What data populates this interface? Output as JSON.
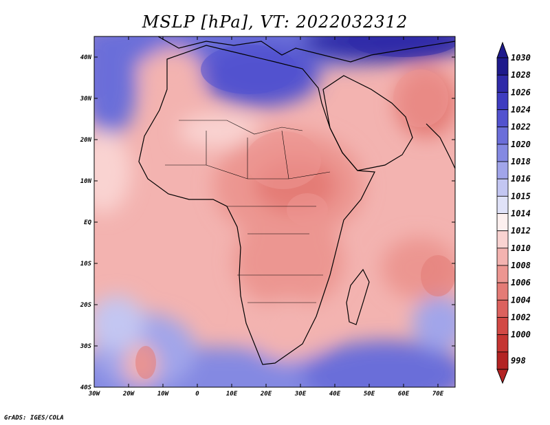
{
  "title": "MSLP [hPa], VT: 2022032312",
  "credit": "GrADS: IGES/COLA",
  "map": {
    "lon_range": [
      -30,
      75
    ],
    "lat_range": [
      -40,
      45
    ],
    "lon_ticks": [
      {
        "lon": -30,
        "label": "30W"
      },
      {
        "lon": -20,
        "label": "20W"
      },
      {
        "lon": -10,
        "label": "10W"
      },
      {
        "lon": 0,
        "label": "0"
      },
      {
        "lon": 10,
        "label": "10E"
      },
      {
        "lon": 20,
        "label": "20E"
      },
      {
        "lon": 30,
        "label": "30E"
      },
      {
        "lon": 40,
        "label": "40E"
      },
      {
        "lon": 50,
        "label": "50E"
      },
      {
        "lon": 60,
        "label": "60E"
      },
      {
        "lon": 70,
        "label": "70E"
      }
    ],
    "lat_ticks": [
      {
        "lat": 40,
        "label": "40N"
      },
      {
        "lat": 30,
        "label": "30N"
      },
      {
        "lat": 20,
        "label": "20N"
      },
      {
        "lat": 10,
        "label": "10N"
      },
      {
        "lat": 0,
        "label": "EQ"
      },
      {
        "lat": -10,
        "label": "10S"
      },
      {
        "lat": -20,
        "label": "20S"
      },
      {
        "lat": -30,
        "label": "30S"
      },
      {
        "lat": -40,
        "label": "40S"
      }
    ]
  },
  "colorbar": {
    "levels": [
      {
        "label": "1030",
        "color": "#1e1a8c"
      },
      {
        "label": "1028",
        "color": "#2f2aa8"
      },
      {
        "label": "1026",
        "color": "#3e3cc0"
      },
      {
        "label": "1024",
        "color": "#5252cf"
      },
      {
        "label": "1022",
        "color": "#6b6ed9"
      },
      {
        "label": "1020",
        "color": "#8489e2"
      },
      {
        "label": "1018",
        "color": "#a1a5ea"
      },
      {
        "label": "1016",
        "color": "#c3c6f2"
      },
      {
        "label": "1015",
        "color": "#e0e2f8"
      },
      {
        "label": "1014",
        "color": "#fdf0ef"
      },
      {
        "label": "1012",
        "color": "#f9d3d1"
      },
      {
        "label": "1010",
        "color": "#f3b3b0"
      },
      {
        "label": "1008",
        "color": "#ec9691"
      },
      {
        "label": "1006",
        "color": "#e47b76"
      },
      {
        "label": "1004",
        "color": "#dc625e"
      },
      {
        "label": "1002",
        "color": "#d24945"
      },
      {
        "label": "1000",
        "color": "#c53532"
      },
      {
        "label": "998",
        "color": "#b32323"
      }
    ]
  },
  "pressure_regions": [
    {
      "label": "1008",
      "lon": 25,
      "lat": 15,
      "rx": 11,
      "ry": 7
    },
    {
      "label": "1008",
      "lon": 32,
      "lat": 3,
      "rx": 6,
      "ry": 4
    },
    {
      "label": "1008",
      "lon": 65,
      "lat": 30,
      "rx": 8,
      "ry": 7
    },
    {
      "label": "1006",
      "lon": 70,
      "lat": -13,
      "rx": 5,
      "ry": 5
    },
    {
      "label": "1028",
      "lon": 60,
      "lat": 44,
      "rx": 16,
      "ry": 4
    },
    {
      "label": "1024",
      "lon": 15,
      "lat": 37,
      "rx": 14,
      "ry": 6
    },
    {
      "label": "1022",
      "lon": -29,
      "lat": 36,
      "rx": 4,
      "ry": 6
    },
    {
      "label": "1006",
      "lon": -15,
      "lat": -34,
      "rx": 3,
      "ry": 4
    }
  ]
}
